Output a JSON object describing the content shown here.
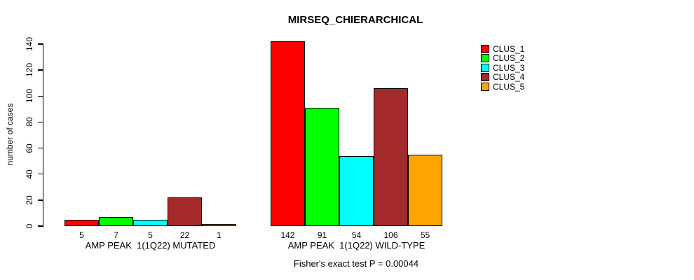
{
  "chart_data": {
    "type": "bar",
    "title": "MIRSEQ_CHIERARCHICAL",
    "ylabel": "number of cases",
    "ylim": [
      0,
      140
    ],
    "yticks": [
      0,
      20,
      40,
      60,
      80,
      100,
      120,
      140
    ],
    "grid": false,
    "legend_position": "topright",
    "categories": [
      "AMP PEAK  1(1Q22) MUTATED",
      "AMP PEAK  1(1Q22) WILD-TYPE"
    ],
    "groups": [
      {
        "label": "AMP PEAK  1(1Q22) MUTATED",
        "values": [
          5,
          7,
          5,
          22,
          1
        ]
      },
      {
        "label": "AMP PEAK  1(1Q22) WILD-TYPE",
        "values": [
          142,
          91,
          54,
          106,
          55
        ]
      }
    ],
    "series": [
      {
        "name": "CLUS_1",
        "color": "#FF0000"
      },
      {
        "name": "CLUS_2",
        "color": "#00FF00"
      },
      {
        "name": "CLUS_3",
        "color": "#00FFFF"
      },
      {
        "name": "CLUS_4",
        "color": "#A52A2A"
      },
      {
        "name": "CLUS_5",
        "color": "#FFA500"
      }
    ],
    "footnote": "Fisher's exact test P = 0.00044"
  }
}
